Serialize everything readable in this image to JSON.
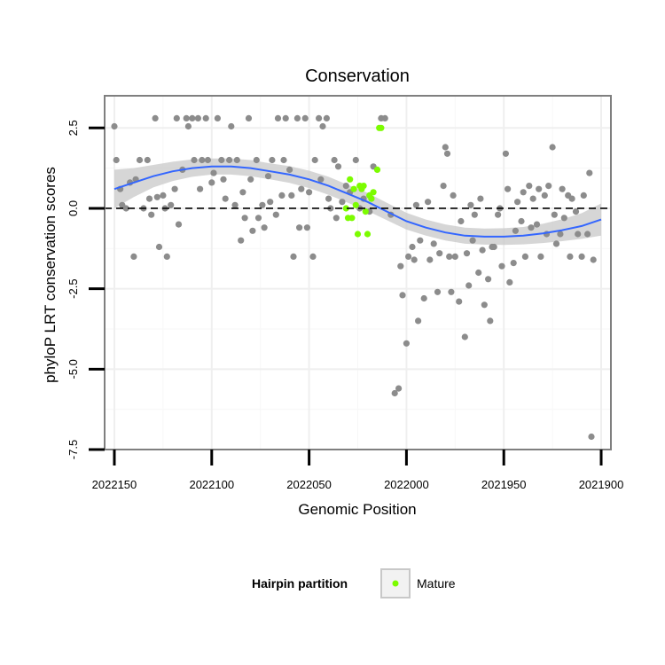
{
  "chart_data": {
    "type": "scatter",
    "title": "Conservation",
    "xlabel": "Genomic Position",
    "ylabel": "phyloP LRT conservation scores",
    "xlim": [
      2022155,
      2021895
    ],
    "x_reversed": true,
    "ylim": [
      -7.5,
      3.5
    ],
    "xticks": [
      2022150,
      2022100,
      2022050,
      2022000,
      2021950,
      2021900
    ],
    "xtick_labels": [
      "2022150",
      "2022100",
      "2022050",
      "2022000",
      "2021950",
      "2021900"
    ],
    "yticks": [
      -7.5,
      -5.0,
      -2.5,
      0.0,
      2.5
    ],
    "ytick_labels": [
      "-7.5",
      "-5.0",
      "-2.5",
      "0.0",
      "2.5"
    ],
    "grid": true,
    "reference_line": {
      "y": 0,
      "style": "dashed"
    },
    "legend": {
      "title": "Hairpin partition",
      "entries": [
        {
          "label": "Mature",
          "color": "#7cfc00"
        }
      ],
      "position": "bottom"
    },
    "colors": {
      "other": "#8c8c8c",
      "mature": "#7cfc00",
      "smooth": "#3366ff",
      "ribbon": "#c8c8c8"
    },
    "series": [
      {
        "name": "Other",
        "points": [
          [
            2022150,
            2.55
          ],
          [
            2022149,
            1.5
          ],
          [
            2022147,
            0.6
          ],
          [
            2022146,
            0.1
          ],
          [
            2022144,
            0.0
          ],
          [
            2022142,
            0.8
          ],
          [
            2022140,
            -1.5
          ],
          [
            2022139,
            0.9
          ],
          [
            2022137,
            1.5
          ],
          [
            2022135,
            0.0
          ],
          [
            2022133,
            1.5
          ],
          [
            2022132,
            0.3
          ],
          [
            2022131,
            -0.2
          ],
          [
            2022129,
            2.8
          ],
          [
            2022128,
            0.35
          ],
          [
            2022127,
            -1.2
          ],
          [
            2022125,
            0.4
          ],
          [
            2022124,
            0.0
          ],
          [
            2022123,
            -1.5
          ],
          [
            2022121,
            0.1
          ],
          [
            2022119,
            0.6
          ],
          [
            2022118,
            2.8
          ],
          [
            2022117,
            -0.5
          ],
          [
            2022115,
            1.2
          ],
          [
            2022113,
            2.8
          ],
          [
            2022112,
            2.55
          ],
          [
            2022110,
            2.8
          ],
          [
            2022109,
            1.5
          ],
          [
            2022107,
            2.8
          ],
          [
            2022106,
            0.6
          ],
          [
            2022105,
            1.5
          ],
          [
            2022103,
            2.8
          ],
          [
            2022102,
            1.5
          ],
          [
            2022100,
            0.8
          ],
          [
            2022099,
            1.1
          ],
          [
            2022097,
            2.8
          ],
          [
            2022095,
            1.5
          ],
          [
            2022094,
            0.9
          ],
          [
            2022093,
            0.3
          ],
          [
            2022091,
            1.5
          ],
          [
            2022090,
            2.55
          ],
          [
            2022088,
            0.1
          ],
          [
            2022087,
            1.5
          ],
          [
            2022085,
            -1.0
          ],
          [
            2022084,
            0.5
          ],
          [
            2022083,
            -0.3
          ],
          [
            2022081,
            2.8
          ],
          [
            2022080,
            0.9
          ],
          [
            2022079,
            -0.7
          ],
          [
            2022077,
            1.5
          ],
          [
            2022076,
            -0.3
          ],
          [
            2022074,
            0.1
          ],
          [
            2022073,
            -0.6
          ],
          [
            2022071,
            1.0
          ],
          [
            2022070,
            0.2
          ],
          [
            2022069,
            1.5
          ],
          [
            2022067,
            -0.2
          ],
          [
            2022066,
            2.8
          ],
          [
            2022064,
            0.4
          ],
          [
            2022063,
            1.5
          ],
          [
            2022062,
            2.8
          ],
          [
            2022060,
            1.2
          ],
          [
            2022059,
            0.4
          ],
          [
            2022058,
            -1.5
          ],
          [
            2022056,
            2.8
          ],
          [
            2022055,
            -0.6
          ],
          [
            2022054,
            0.6
          ],
          [
            2022052,
            2.8
          ],
          [
            2022051,
            -0.6
          ],
          [
            2022050,
            0.5
          ],
          [
            2022048,
            -1.5
          ],
          [
            2022047,
            1.5
          ],
          [
            2022045,
            2.8
          ],
          [
            2022044,
            0.9
          ],
          [
            2022043,
            2.55
          ],
          [
            2022041,
            2.8
          ],
          [
            2022040,
            0.3
          ],
          [
            2022039,
            0.0
          ],
          [
            2022037,
            1.5
          ],
          [
            2022036,
            -0.3
          ],
          [
            2022035,
            1.3
          ],
          [
            2022033,
            0.2
          ],
          [
            2022031,
            0.7
          ],
          [
            2022029,
            0.5
          ],
          [
            2022026,
            1.5
          ],
          [
            2022024,
            0.0
          ],
          [
            2022022,
            0.3
          ],
          [
            2022019,
            -0.1
          ],
          [
            2022017,
            1.3
          ],
          [
            2022013,
            2.8
          ],
          [
            2022011,
            2.8
          ],
          [
            2022008,
            -0.2
          ],
          [
            2022006,
            -5.75
          ],
          [
            2022004,
            -5.6
          ],
          [
            2022003,
            -1.8
          ],
          [
            2022002,
            -2.7
          ],
          [
            2022000,
            -4.2
          ],
          [
            2021999,
            -1.5
          ],
          [
            2021997,
            -1.2
          ],
          [
            2021996,
            -1.6
          ],
          [
            2021995,
            0.1
          ],
          [
            2021994,
            -3.5
          ],
          [
            2021993,
            -1.0
          ],
          [
            2021991,
            -2.8
          ],
          [
            2021989,
            0.2
          ],
          [
            2021988,
            -1.6
          ],
          [
            2021986,
            -1.1
          ],
          [
            2021984,
            -2.6
          ],
          [
            2021983,
            -1.4
          ],
          [
            2021981,
            0.7
          ],
          [
            2021980,
            1.9
          ],
          [
            2021979,
            1.7
          ],
          [
            2021978,
            -1.5
          ],
          [
            2021977,
            -2.6
          ],
          [
            2021976,
            0.4
          ],
          [
            2021975,
            -1.5
          ],
          [
            2021973,
            -2.9
          ],
          [
            2021972,
            -0.4
          ],
          [
            2021970,
            -4.0
          ],
          [
            2021969,
            -1.4
          ],
          [
            2021968,
            -2.4
          ],
          [
            2021967,
            0.1
          ],
          [
            2021966,
            -1.0
          ],
          [
            2021965,
            -0.2
          ],
          [
            2021963,
            -2.0
          ],
          [
            2021962,
            0.3
          ],
          [
            2021961,
            -1.3
          ],
          [
            2021960,
            -3.0
          ],
          [
            2021958,
            -2.2
          ],
          [
            2021957,
            -3.5
          ],
          [
            2021956,
            -1.2
          ],
          [
            2021955,
            -1.2
          ],
          [
            2021953,
            -0.2
          ],
          [
            2021952,
            0.0
          ],
          [
            2021951,
            -1.8
          ],
          [
            2021949,
            1.7
          ],
          [
            2021948,
            0.6
          ],
          [
            2021947,
            -2.3
          ],
          [
            2021945,
            -1.7
          ],
          [
            2021944,
            -0.7
          ],
          [
            2021943,
            0.2
          ],
          [
            2021941,
            -0.4
          ],
          [
            2021940,
            0.5
          ],
          [
            2021939,
            -1.5
          ],
          [
            2021937,
            0.7
          ],
          [
            2021936,
            -0.6
          ],
          [
            2021935,
            0.3
          ],
          [
            2021933,
            -0.5
          ],
          [
            2021932,
            0.6
          ],
          [
            2021931,
            -1.5
          ],
          [
            2021929,
            0.4
          ],
          [
            2021928,
            -0.8
          ],
          [
            2021927,
            0.7
          ],
          [
            2021925,
            1.9
          ],
          [
            2021924,
            -0.2
          ],
          [
            2021923,
            -1.1
          ],
          [
            2021921,
            -0.8
          ],
          [
            2021920,
            0.6
          ],
          [
            2021919,
            -0.3
          ],
          [
            2021917,
            0.4
          ],
          [
            2021916,
            -1.5
          ],
          [
            2021915,
            0.3
          ],
          [
            2021913,
            -0.1
          ],
          [
            2021912,
            -0.8
          ],
          [
            2021910,
            -1.5
          ],
          [
            2021909,
            0.4
          ],
          [
            2021907,
            -0.8
          ],
          [
            2021906,
            1.1
          ],
          [
            2021905,
            -7.1
          ],
          [
            2021904,
            -1.6
          ]
        ]
      },
      {
        "name": "Mature",
        "points": [
          [
            2022031,
            0.0
          ],
          [
            2022030,
            -0.3
          ],
          [
            2022029,
            0.9
          ],
          [
            2022028,
            -0.3
          ],
          [
            2022027,
            0.6
          ],
          [
            2022026,
            0.1
          ],
          [
            2022025,
            -0.8
          ],
          [
            2022024,
            0.7
          ],
          [
            2022023,
            0.6
          ],
          [
            2022022,
            0.7
          ],
          [
            2022021,
            -0.1
          ],
          [
            2022020,
            -0.8
          ],
          [
            2022019,
            0.4
          ],
          [
            2022018,
            0.3
          ],
          [
            2022017,
            0.5
          ],
          [
            2022015,
            1.2
          ],
          [
            2022014,
            2.5
          ],
          [
            2022013,
            2.5
          ]
        ]
      }
    ],
    "smooth": {
      "method": "loess",
      "x": [
        2022150,
        2022140,
        2022130,
        2022120,
        2022110,
        2022100,
        2022090,
        2022080,
        2022070,
        2022060,
        2022050,
        2022040,
        2022030,
        2022020,
        2022010,
        2022000,
        2021990,
        2021980,
        2021970,
        2021960,
        2021950,
        2021940,
        2021930,
        2021920,
        2021910,
        2021900
      ],
      "y": [
        0.6,
        0.8,
        1.0,
        1.15,
        1.25,
        1.3,
        1.3,
        1.25,
        1.15,
        1.05,
        0.9,
        0.7,
        0.45,
        0.2,
        -0.1,
        -0.4,
        -0.6,
        -0.75,
        -0.85,
        -0.88,
        -0.88,
        -0.85,
        -0.78,
        -0.68,
        -0.55,
        -0.35
      ],
      "se": [
        0.6,
        0.45,
        0.35,
        0.3,
        0.27,
        0.25,
        0.25,
        0.25,
        0.25,
        0.26,
        0.27,
        0.28,
        0.28,
        0.28,
        0.27,
        0.26,
        0.25,
        0.25,
        0.25,
        0.25,
        0.26,
        0.27,
        0.3,
        0.34,
        0.4,
        0.5
      ]
    }
  }
}
